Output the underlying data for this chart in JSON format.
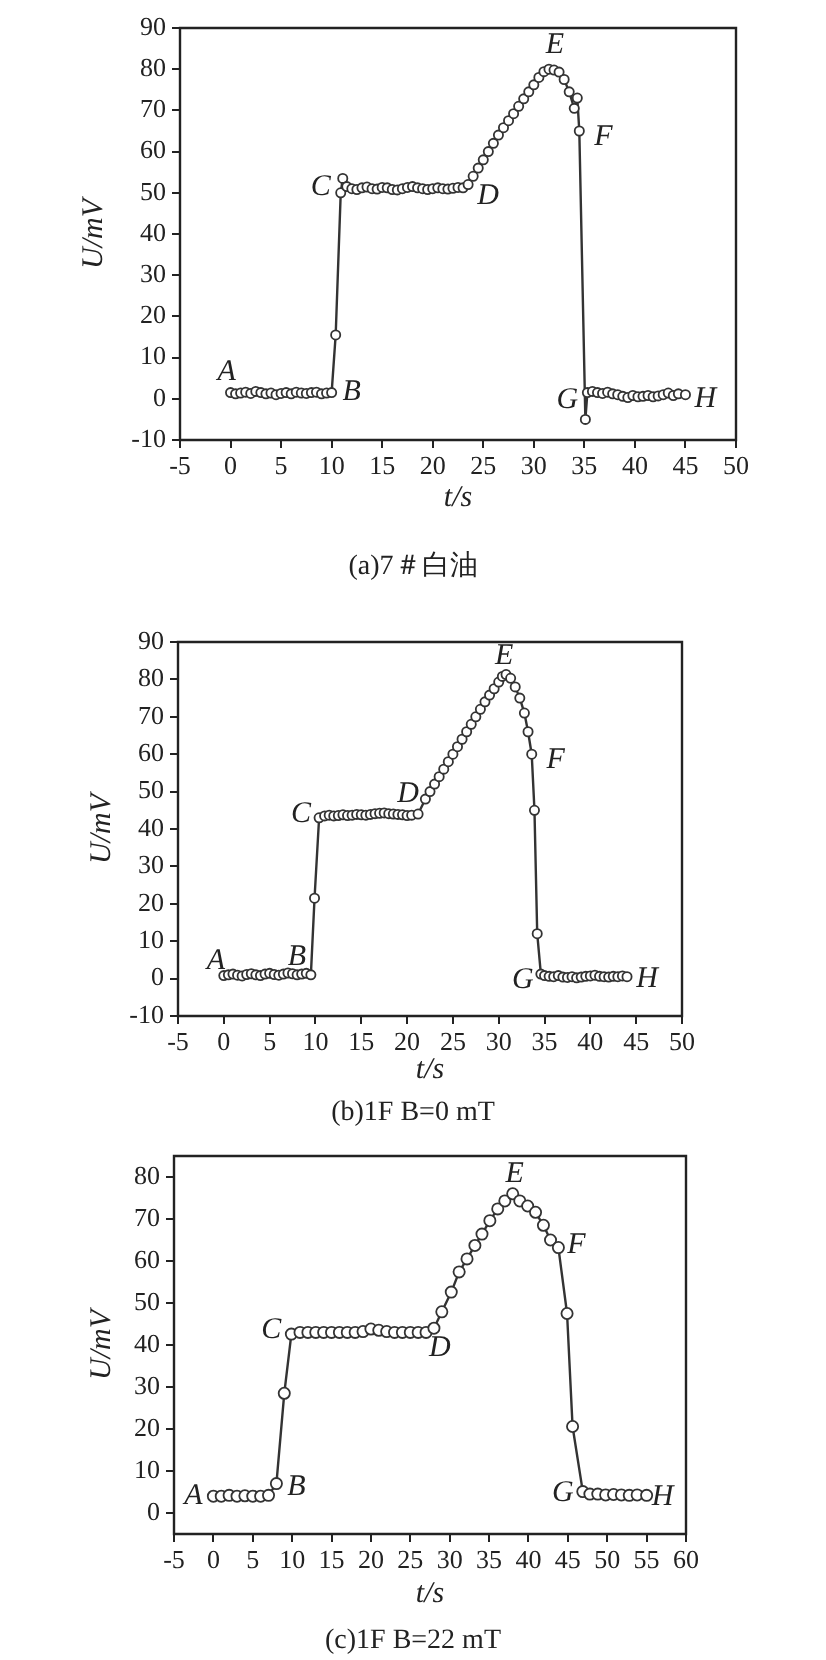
{
  "chart_data": [
    {
      "type": "line",
      "title": "(a)7＃白油",
      "xlabel": "t/s",
      "ylabel": "U/mV",
      "color": "#333333",
      "marker": "circle",
      "x": [
        0,
        0.5,
        1,
        1.5,
        2,
        2.5,
        3,
        3.5,
        4,
        4.5,
        5,
        5.5,
        6,
        6.5,
        7,
        7.5,
        8,
        8.5,
        9,
        9.5,
        10,
        10.4,
        10.9,
        11.1,
        11.5,
        12,
        12.5,
        13,
        13.5,
        14,
        14.5,
        15,
        15.5,
        16,
        16.5,
        17,
        17.5,
        18,
        18.5,
        19,
        19.5,
        20,
        20.5,
        21,
        21.5,
        22,
        22.5,
        23,
        23.5,
        24,
        24.5,
        25,
        25.5,
        26,
        26.5,
        27,
        27.5,
        28,
        28.5,
        29,
        29.5,
        30,
        30.5,
        31,
        31.5,
        32,
        32.5,
        33,
        33.5,
        34,
        34.3,
        34.5,
        35.1,
        35.3,
        35.8,
        36.3,
        36.8,
        37.3,
        37.8,
        38.3,
        38.8,
        39.3,
        39.8,
        40.3,
        40.8,
        41.3,
        41.8,
        42.3,
        42.8,
        43.3,
        43.8,
        44.3,
        45
      ],
      "values": [
        1.5,
        1.2,
        1.4,
        1.6,
        1.3,
        1.8,
        1.5,
        1.2,
        1.4,
        1.0,
        1.3,
        1.5,
        1.2,
        1.6,
        1.4,
        1.3,
        1.5,
        1.6,
        1.2,
        1.4,
        1.5,
        15.5,
        50,
        53.5,
        51.5,
        51,
        50.8,
        51.2,
        51.4,
        51,
        50.9,
        51.3,
        51.2,
        50.8,
        50.7,
        51,
        51.3,
        51.5,
        51.2,
        51,
        50.8,
        51,
        51.2,
        51,
        50.9,
        51.1,
        51.3,
        51.2,
        52,
        54,
        56,
        58,
        60,
        62,
        64,
        65.8,
        67.5,
        69.2,
        71,
        72.8,
        74.5,
        76.2,
        78,
        79.4,
        80,
        79.8,
        79.3,
        77.5,
        74.5,
        70.5,
        73,
        65,
        -5,
        1.5,
        1.8,
        1.5,
        1.3,
        1.6,
        1.2,
        1.0,
        0.6,
        0.3,
        0.8,
        0.5,
        0.6,
        0.8,
        0.5,
        0.7,
        1.0,
        1.4,
        0.8,
        1.2,
        1.0
      ],
      "xlim": [
        -5,
        50
      ],
      "ylim": [
        -10,
        90
      ],
      "xticks": [
        -5,
        0,
        5,
        10,
        15,
        20,
        25,
        30,
        35,
        40,
        45,
        50
      ],
      "yticks": [
        -10,
        0,
        10,
        20,
        30,
        40,
        50,
        60,
        70,
        80,
        90
      ],
      "annotations": [
        {
          "text": "A",
          "x": 0,
          "y": 1.5
        },
        {
          "text": "B",
          "x": 10,
          "y": 1.5
        },
        {
          "text": "C",
          "x": 10.9,
          "y": 50
        },
        {
          "text": "D",
          "x": 23.5,
          "y": 52
        },
        {
          "text": "E",
          "x": 31.5,
          "y": 80
        },
        {
          "text": "F",
          "x": 34.5,
          "y": 65
        },
        {
          "text": "G",
          "x": 35.3,
          "y": 1.5
        },
        {
          "text": "H",
          "x": 45,
          "y": 1.0
        }
      ]
    },
    {
      "type": "line",
      "title": "(b)1F B=0 mT",
      "xlabel": "t/s",
      "ylabel": "U/mV",
      "color": "#333333",
      "marker": "circle",
      "x": [
        0,
        0.5,
        1,
        1.5,
        2,
        2.5,
        3,
        3.5,
        4,
        4.5,
        5,
        5.5,
        6,
        6.5,
        7,
        7.5,
        8,
        8.5,
        9,
        9.5,
        9.9,
        10.4,
        11,
        11.5,
        12,
        12.5,
        13,
        13.5,
        14,
        14.5,
        15,
        15.5,
        16,
        16.5,
        17,
        17.5,
        18,
        18.5,
        19,
        19.5,
        20,
        20.5,
        21.2,
        22,
        22.5,
        23,
        23.5,
        24,
        24.5,
        25,
        25.5,
        26,
        26.5,
        27,
        27.5,
        28,
        28.5,
        29,
        29.5,
        30,
        30.4,
        30.8,
        31.3,
        31.8,
        32.3,
        32.8,
        33.2,
        33.6,
        33.9,
        34.2,
        34.6,
        35,
        35.5,
        36,
        36.5,
        37,
        37.5,
        38,
        38.5,
        39,
        39.5,
        40,
        40.5,
        41,
        41.5,
        42,
        42.5,
        43,
        43.5,
        44
      ],
      "values": [
        0.8,
        1.0,
        1.2,
        0.9,
        0.7,
        1.1,
        1.3,
        1.0,
        0.8,
        1.2,
        1.4,
        1.1,
        0.9,
        1.2,
        1.5,
        1.3,
        1.0,
        1.2,
        1.4,
        1.0,
        21.5,
        43,
        43.5,
        43.7,
        43.5,
        43.6,
        43.8,
        43.6,
        43.7,
        43.9,
        43.8,
        43.7,
        43.9,
        44.1,
        44.2,
        44.3,
        44.1,
        44,
        43.9,
        43.8,
        43.6,
        43.7,
        44,
        48,
        50,
        52,
        54,
        56,
        58,
        60,
        62,
        64,
        66,
        68,
        70,
        72,
        74,
        75.8,
        77.5,
        79.3,
        80.8,
        81.3,
        80.3,
        78,
        75,
        71,
        66,
        60,
        45,
        12,
        1.2,
        0.8,
        0.6,
        0.5,
        0.8,
        0.4,
        0.3,
        0.5,
        0.2,
        0.4,
        0.6,
        0.7,
        0.9,
        0.6,
        0.5,
        0.4,
        0.6,
        0.5,
        0.7,
        0.5
      ],
      "xlim": [
        -5,
        50
      ],
      "ylim": [
        -10,
        90
      ],
      "xticks": [
        -5,
        0,
        5,
        10,
        15,
        20,
        25,
        30,
        35,
        40,
        45,
        50
      ],
      "yticks": [
        -10,
        0,
        10,
        20,
        30,
        40,
        50,
        60,
        70,
        80,
        90
      ],
      "annotations": [
        {
          "text": "A",
          "x": 0,
          "y": 0.8
        },
        {
          "text": "B",
          "x": 9.5,
          "y": 1.0
        },
        {
          "text": "C",
          "x": 10.4,
          "y": 43
        },
        {
          "text": "D",
          "x": 21.2,
          "y": 44
        },
        {
          "text": "E",
          "x": 30.8,
          "y": 81.3
        },
        {
          "text": "F",
          "x": 33.6,
          "y": 60
        },
        {
          "text": "G",
          "x": 34.6,
          "y": 1.2
        },
        {
          "text": "H",
          "x": 44,
          "y": 0.5
        }
      ]
    },
    {
      "type": "line",
      "title": "(c)1F B=22 mT",
      "xlabel": "t/s",
      "ylabel": "U/mV",
      "color": "#333333",
      "marker": "circle",
      "x": [
        0,
        1,
        2,
        3,
        4,
        5,
        6,
        7,
        8,
        9,
        9.9,
        11,
        12,
        13,
        14,
        15,
        16,
        17,
        18,
        19,
        20,
        21,
        22,
        23,
        24,
        25,
        26,
        27,
        28,
        29,
        30.2,
        31.2,
        32.2,
        33.2,
        34.1,
        35.1,
        36.1,
        37,
        38,
        38.9,
        39.9,
        40.9,
        41.9,
        42.8,
        43.8,
        44.9,
        45.6,
        46.9,
        47.8,
        48.8,
        49.8,
        50.8,
        51.8,
        52.8,
        53.8,
        55
      ],
      "values": [
        4,
        4,
        4.2,
        4,
        4.1,
        4,
        4,
        4.2,
        7,
        28.5,
        42.6,
        43,
        43,
        43,
        43,
        43,
        43,
        43,
        43,
        43.2,
        43.8,
        43.5,
        43.2,
        43,
        43,
        43,
        43,
        43,
        44,
        47.9,
        52.6,
        57.4,
        60.5,
        63.7,
        66.4,
        69.6,
        72.4,
        74.3,
        76,
        74.3,
        73.1,
        71.6,
        68.5,
        65,
        63.2,
        47.5,
        20.6,
        5.1,
        4.5,
        4.5,
        4.3,
        4.4,
        4.3,
        4.2,
        4.3,
        4.2
      ],
      "xlim": [
        -5,
        60
      ],
      "ylim": [
        -5,
        85
      ],
      "xticks": [
        -5,
        0,
        5,
        10,
        15,
        20,
        25,
        30,
        35,
        40,
        45,
        50,
        55,
        60
      ],
      "yticks": [
        0,
        10,
        20,
        30,
        40,
        50,
        60,
        70,
        80
      ],
      "annotations": [
        {
          "text": "A",
          "x": 0,
          "y": 4
        },
        {
          "text": "B",
          "x": 8,
          "y": 7
        },
        {
          "text": "C",
          "x": 9.9,
          "y": 42.6
        },
        {
          "text": "D",
          "x": 28,
          "y": 44
        },
        {
          "text": "E",
          "x": 38,
          "y": 76
        },
        {
          "text": "F",
          "x": 43.8,
          "y": 63.2
        },
        {
          "text": "G",
          "x": 46.9,
          "y": 5.1
        },
        {
          "text": "H",
          "x": 55,
          "y": 4.2
        }
      ]
    }
  ]
}
